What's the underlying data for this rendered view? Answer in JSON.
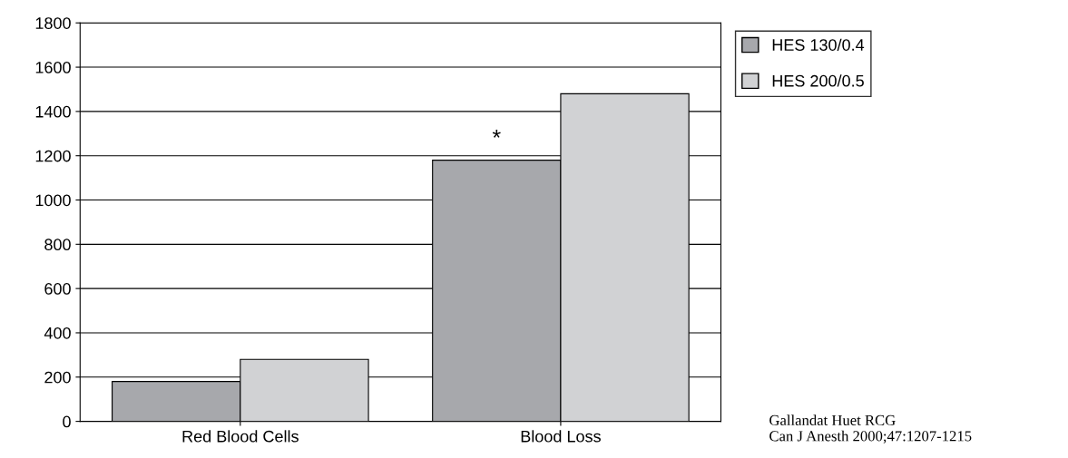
{
  "chart_data": {
    "type": "bar",
    "categories": [
      "Red Blood Cells",
      "Blood Loss"
    ],
    "series": [
      {
        "name": "HES 130/0.4",
        "color": "#a7a8ac",
        "values": [
          180,
          1180
        ]
      },
      {
        "name": "HES 200/0.5",
        "color": "#d1d2d4",
        "values": [
          280,
          1480
        ]
      }
    ],
    "ylim": [
      0,
      1800
    ],
    "yticks": [
      0,
      200,
      400,
      600,
      800,
      1000,
      1200,
      1400,
      1600,
      1800
    ],
    "grid": "y",
    "legend": "top right",
    "annotations": [
      {
        "text": "*",
        "x": "Blood Loss",
        "y": 1180
      },
      "Gallandat Huet RCG\nCan J Anesth 2000;47:1207-1215"
    ]
  }
}
